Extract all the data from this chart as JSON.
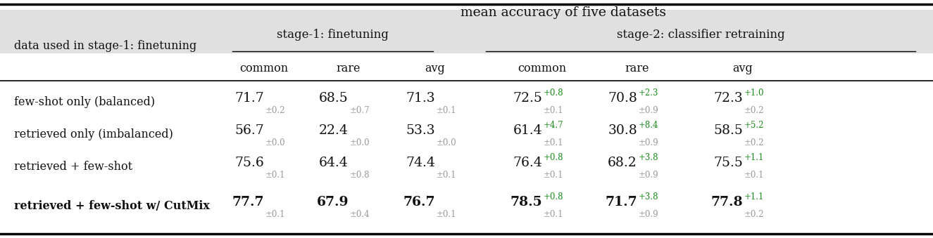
{
  "title": "mean accuracy of five datasets",
  "rows": [
    {
      "label": "few-shot only (balanced)",
      "s1_common": "71.7",
      "s1_common_pm": "±0.2",
      "s1_rare": "68.5",
      "s1_rare_pm": "±0.7",
      "s1_avg": "71.3",
      "s1_avg_pm": "±0.1",
      "s2_common": "72.5",
      "s2_common_up": "+0.8",
      "s2_common_pm": "±0.1",
      "s2_rare": "70.8",
      "s2_rare_up": "+2.3",
      "s2_rare_pm": "±0.9",
      "s2_avg": "72.3",
      "s2_avg_up": "+1.0",
      "s2_avg_pm": "±0.2",
      "bold": false
    },
    {
      "label": "retrieved only (imbalanced)",
      "s1_common": "56.7",
      "s1_common_pm": "±0.0",
      "s1_rare": "22.4",
      "s1_rare_pm": "±0.0",
      "s1_avg": "53.3",
      "s1_avg_pm": "±0.0",
      "s2_common": "61.4",
      "s2_common_up": "+4.7",
      "s2_common_pm": "±0.1",
      "s2_rare": "30.8",
      "s2_rare_up": "+8.4",
      "s2_rare_pm": "±0.9",
      "s2_avg": "58.5",
      "s2_avg_up": "+5.2",
      "s2_avg_pm": "±0.2",
      "bold": false
    },
    {
      "label": "retrieved + few-shot",
      "s1_common": "75.6",
      "s1_common_pm": "±0.1",
      "s1_rare": "64.4",
      "s1_rare_pm": "±0.8",
      "s1_avg": "74.4",
      "s1_avg_pm": "±0.1",
      "s2_common": "76.4",
      "s2_common_up": "+0.8",
      "s2_common_pm": "±0.1",
      "s2_rare": "68.2",
      "s2_rare_up": "+3.8",
      "s2_rare_pm": "±0.9",
      "s2_avg": "75.5",
      "s2_avg_up": "+1.1",
      "s2_avg_pm": "±0.1",
      "bold": false
    },
    {
      "label": "retrieved + few-shot w/ CutMix",
      "s1_common": "77.7",
      "s1_common_pm": "±0.1",
      "s1_rare": "67.9",
      "s1_rare_pm": "±0.4",
      "s1_avg": "76.7",
      "s1_avg_pm": "±0.1",
      "s2_common": "78.5",
      "s2_common_up": "+0.8",
      "s2_common_pm": "±0.1",
      "s2_rare": "71.7",
      "s2_rare_up": "+3.8",
      "s2_rare_pm": "±0.9",
      "s2_avg": "77.8",
      "s2_avg_up": "+1.1",
      "s2_avg_pm": "±0.2",
      "bold": true
    }
  ],
  "green_color": "#1a8c1a",
  "gray_color": "#999999",
  "black_color": "#111111",
  "bg_highlight": "#e0e0e0"
}
